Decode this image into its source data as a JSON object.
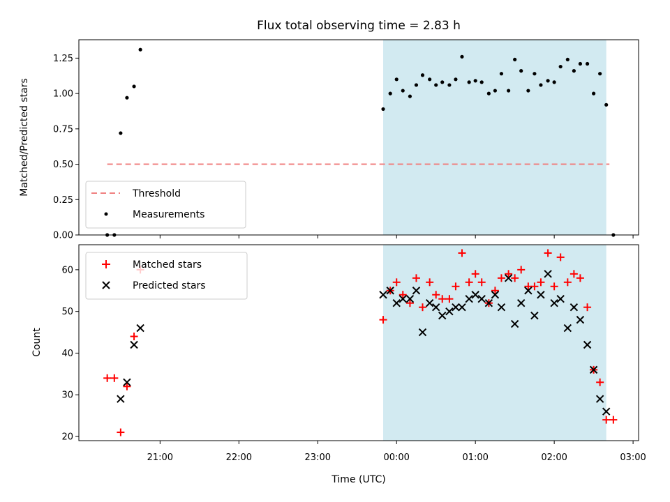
{
  "chart_data": [
    {
      "type": "scatter",
      "title": "Flux total observing time = 2.83 h",
      "xlabel": "",
      "ylabel": "Matched/Predicted stars",
      "ylim": [
        0,
        1.38
      ],
      "y_ticks": [
        "0.00",
        "0.25",
        "0.50",
        "0.75",
        "1.00",
        "1.25"
      ],
      "x_unit": "hours since 20:00 UTC",
      "xlim": [
        -0.03,
        7.07
      ],
      "shaded_region": [
        3.83,
        6.66
      ],
      "shaded_color": "#add8e6",
      "threshold": {
        "name": "Threshold",
        "y": 0.5,
        "x": [
          0.33,
          6.7
        ],
        "color": "#f08080"
      },
      "series": [
        {
          "name": "Measurements",
          "color": "#000000",
          "x": [
            0.33,
            0.42,
            0.5,
            0.58,
            0.67,
            0.75,
            3.83,
            3.92,
            4.0,
            4.08,
            4.17,
            4.25,
            4.33,
            4.42,
            4.5,
            4.58,
            4.67,
            4.75,
            4.83,
            4.92,
            5.0,
            5.08,
            5.17,
            5.25,
            5.33,
            5.42,
            5.5,
            5.58,
            5.67,
            5.75,
            5.83,
            5.92,
            6.0,
            6.08,
            6.17,
            6.25,
            6.33,
            6.42,
            6.5,
            6.58,
            6.66,
            6.75
          ],
          "y": [
            0.0,
            0.0,
            0.72,
            0.97,
            1.05,
            1.31,
            0.89,
            1.0,
            1.1,
            1.02,
            0.98,
            1.06,
            1.13,
            1.1,
            1.06,
            1.08,
            1.06,
            1.1,
            1.26,
            1.08,
            1.09,
            1.08,
            1.0,
            1.02,
            1.14,
            1.02,
            1.24,
            1.16,
            1.02,
            1.14,
            1.06,
            1.09,
            1.08,
            1.19,
            1.24,
            1.16,
            1.21,
            1.21,
            1.0,
            1.14,
            0.92,
            0.0
          ]
        }
      ],
      "legend": [
        "Threshold",
        "Measurements"
      ],
      "legend_location": "lower-left"
    },
    {
      "type": "scatter",
      "title": "",
      "xlabel": "Time (UTC)",
      "ylabel": "Count",
      "ylim": [
        19,
        66
      ],
      "y_ticks": [
        "20",
        "30",
        "40",
        "50",
        "60"
      ],
      "x_unit": "hours since 20:00 UTC",
      "xlim": [
        -0.03,
        7.07
      ],
      "x_ticks": [
        "21:00",
        "22:00",
        "23:00",
        "00:00",
        "01:00",
        "02:00",
        "03:00"
      ],
      "shaded_region": [
        3.83,
        6.66
      ],
      "shaded_color": "#add8e6",
      "series": [
        {
          "name": "Matched stars",
          "marker": "plus",
          "color": "#ff0000",
          "x": [
            0.33,
            0.42,
            0.5,
            0.58,
            0.67,
            0.75,
            3.83,
            3.92,
            4.0,
            4.08,
            4.17,
            4.25,
            4.33,
            4.42,
            4.5,
            4.58,
            4.67,
            4.75,
            4.83,
            4.92,
            5.0,
            5.08,
            5.17,
            5.25,
            5.33,
            5.42,
            5.5,
            5.58,
            5.67,
            5.75,
            5.83,
            5.92,
            6.0,
            6.08,
            6.17,
            6.25,
            6.33,
            6.42,
            6.5,
            6.58,
            6.66,
            6.75
          ],
          "y": [
            34,
            34,
            21,
            32,
            44,
            60,
            48,
            55,
            57,
            54,
            52,
            58,
            51,
            57,
            54,
            53,
            53,
            56,
            64,
            57,
            59,
            57,
            52,
            55,
            58,
            59,
            58,
            60,
            56,
            56,
            57,
            64,
            56,
            63,
            57,
            59,
            58,
            51,
            36,
            33,
            24,
            24
          ]
        },
        {
          "name": "Predicted stars",
          "marker": "x",
          "color": "#000000",
          "x": [
            0.5,
            0.58,
            0.67,
            0.75,
            3.83,
            3.92,
            4.0,
            4.08,
            4.17,
            4.25,
            4.33,
            4.42,
            4.5,
            4.58,
            4.67,
            4.75,
            4.83,
            4.92,
            5.0,
            5.08,
            5.17,
            5.25,
            5.33,
            5.42,
            5.5,
            5.58,
            5.67,
            5.75,
            5.83,
            5.92,
            6.0,
            6.08,
            6.17,
            6.25,
            6.33,
            6.42,
            6.5,
            6.58,
            6.66
          ],
          "y": [
            29,
            33,
            42,
            46,
            54,
            55,
            52,
            53,
            53,
            55,
            45,
            52,
            51,
            49,
            50,
            51,
            51,
            53,
            54,
            53,
            52,
            54,
            51,
            58,
            47,
            52,
            55,
            49,
            54,
            59,
            52,
            53,
            46,
            51,
            48,
            42,
            36,
            29,
            26
          ]
        }
      ],
      "legend": [
        "Matched stars",
        "Predicted stars"
      ],
      "legend_location": "upper-left"
    }
  ]
}
